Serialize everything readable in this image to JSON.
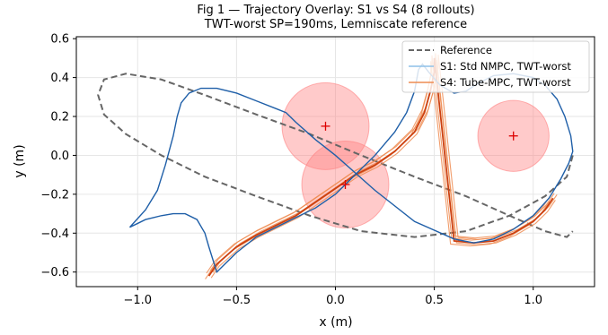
{
  "chart_data": {
    "type": "line",
    "title_line1": "Fig 1 — Trajectory Overlay: S1 vs S4 (8 rollouts)",
    "title_line2": "TWT-worst SP=190ms, Lemniscate reference",
    "xlabel": "x (m)",
    "ylabel": "y (m)",
    "xlim": [
      -1.31,
      1.31
    ],
    "ylim": [
      -0.675,
      0.61
    ],
    "xticks": [
      -1.0,
      -0.5,
      0.0,
      0.5,
      1.0
    ],
    "xtick_labels": [
      "−1.0",
      "−0.5",
      "0.0",
      "0.5",
      "1.0"
    ],
    "yticks": [
      -0.6,
      -0.4,
      -0.2,
      0.0,
      0.2,
      0.4,
      0.6
    ],
    "ytick_labels": [
      "−0.6",
      "−0.4",
      "−0.2",
      "0.0",
      "0.2",
      "0.4",
      "0.6"
    ],
    "grid": true,
    "legend_placement": "upper-right",
    "colors": {
      "reference": "#666666",
      "s1": "#1f5fa8",
      "s1_legend": "#8ec1e8",
      "s4_dark": "#cc4010",
      "s4_light": "#ee8c52",
      "obstacle_fill": "#ff8080",
      "obstacle_center": "#dd0000"
    },
    "series": [
      {
        "name": "Reference",
        "style": "dashed",
        "x": [
          1.2,
          1.17,
          1.06,
          0.88,
          0.66,
          0.4,
          0.13,
          -0.13,
          -0.4,
          -0.66,
          -0.88,
          -1.06,
          -1.17,
          -1.2,
          -1.17,
          -1.06,
          -0.88,
          -0.66,
          -0.4,
          -0.13,
          0.13,
          0.4,
          0.66,
          0.88,
          1.06,
          1.17,
          1.2
        ],
        "y": [
          0.0,
          -0.11,
          -0.21,
          -0.31,
          -0.39,
          -0.42,
          -0.39,
          -0.31,
          -0.21,
          -0.11,
          0.0,
          0.11,
          0.21,
          0.31,
          0.39,
          0.42,
          0.39,
          0.31,
          0.21,
          0.11,
          0.0,
          -0.11,
          -0.21,
          -0.31,
          -0.39,
          -0.42,
          -0.39
        ]
      },
      {
        "name": "S1: Std NMPC, TWT-worst",
        "rollouts": [
          {
            "x": [
              -1.04,
              -0.96,
              -0.9,
              -0.86,
              -0.82,
              -0.8,
              -0.78,
              -0.74,
              -0.68,
              -0.6,
              -0.5,
              -0.4,
              -0.3,
              -0.25,
              -0.2,
              -0.1,
              0.0,
              0.2,
              0.4,
              0.6,
              0.7,
              0.8,
              0.9,
              1.0,
              1.08,
              1.14,
              1.18,
              1.2,
              1.19,
              1.16,
              1.12,
              1.06,
              1.0,
              0.9,
              0.8,
              0.72,
              0.66,
              0.6,
              0.53,
              0.47,
              0.44,
              0.42,
              0.4,
              0.36,
              0.3,
              0.2,
              0.1,
              0.0,
              -0.1,
              -0.2,
              -0.3,
              -0.4,
              -0.5,
              -0.56,
              -0.6,
              -0.64,
              -0.66,
              -0.7,
              -0.76,
              -0.82,
              -0.88,
              -0.92,
              -0.96,
              -1.0,
              -1.04
            ],
            "y": [
              -0.37,
              -0.28,
              -0.18,
              -0.05,
              0.1,
              0.2,
              0.27,
              0.32,
              0.345,
              0.345,
              0.32,
              0.28,
              0.24,
              0.22,
              0.17,
              0.08,
              0.0,
              -0.18,
              -0.34,
              -0.43,
              -0.45,
              -0.43,
              -0.38,
              -0.31,
              -0.22,
              -0.12,
              -0.04,
              0.02,
              0.1,
              0.2,
              0.29,
              0.36,
              0.4,
              0.42,
              0.41,
              0.37,
              0.33,
              0.32,
              0.36,
              0.43,
              0.47,
              0.44,
              0.33,
              0.22,
              0.12,
              0.0,
              -0.1,
              -0.2,
              -0.27,
              -0.32,
              -0.37,
              -0.42,
              -0.5,
              -0.56,
              -0.6,
              -0.47,
              -0.4,
              -0.33,
              -0.3,
              -0.3,
              -0.31,
              -0.32,
              -0.33,
              -0.35,
              -0.37
            ]
          }
        ]
      },
      {
        "name": "S4: Tube-MPC, TWT-worst",
        "rollouts": [
          {
            "x": [
              -0.64,
              -0.6,
              -0.5,
              -0.4,
              -0.3,
              -0.2,
              -0.1,
              0.0,
              0.1,
              0.2,
              0.3,
              0.4,
              0.45,
              0.48,
              0.5,
              0.5,
              0.6,
              0.7,
              0.8,
              0.9,
              1.0,
              1.06,
              1.1
            ],
            "y": [
              -0.62,
              -0.56,
              -0.47,
              -0.41,
              -0.36,
              -0.31,
              -0.24,
              -0.17,
              -0.1,
              -0.05,
              0.02,
              0.12,
              0.22,
              0.33,
              0.43,
              0.5,
              -0.44,
              -0.45,
              -0.44,
              -0.4,
              -0.34,
              -0.28,
              -0.22
            ]
          }
        ]
      }
    ],
    "obstacles": [
      {
        "x": -0.05,
        "y": 0.15,
        "r": 0.22
      },
      {
        "x": 0.05,
        "y": -0.15,
        "r": 0.22
      },
      {
        "x": 0.9,
        "y": 0.1,
        "r": 0.18
      }
    ],
    "legend": [
      {
        "label": "Reference"
      },
      {
        "label": "S1: Std NMPC, TWT-worst"
      },
      {
        "label": "S4: Tube-MPC, TWT-worst"
      }
    ]
  }
}
